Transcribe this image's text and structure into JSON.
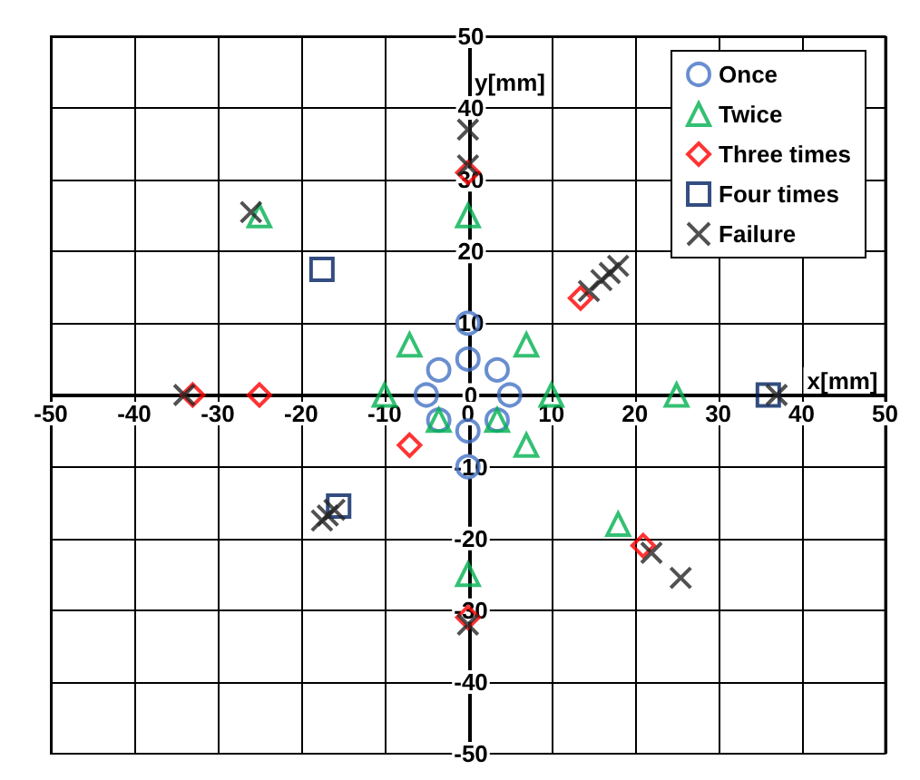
{
  "chart_data": {
    "type": "scatter",
    "xlabel": "x[mm]",
    "ylabel": "y[mm]",
    "xlim": [
      -50,
      50
    ],
    "ylim": [
      -50,
      50
    ],
    "xticks": [
      -50,
      -40,
      -30,
      -20,
      -10,
      0,
      10,
      20,
      30,
      40,
      50
    ],
    "yticks": [
      -50,
      -40,
      -30,
      -20,
      -10,
      0,
      10,
      20,
      30,
      40,
      50
    ],
    "grid": true,
    "legend": "top right",
    "series": [
      {
        "name": "Once",
        "color": "#4472c4",
        "marker": "circle",
        "x": [
          0,
          0,
          3.5,
          -3.5,
          5,
          -5,
          3.5,
          -3.5,
          0,
          0
        ],
        "values": [
          10,
          5,
          3.5,
          3.5,
          0,
          0,
          -3.5,
          -3.5,
          -5,
          -10
        ]
      },
      {
        "name": "Twice",
        "color": "#00b050",
        "marker": "triangle",
        "x": [
          -25,
          0,
          -7,
          7,
          -10,
          10,
          25,
          -3.5,
          3.5,
          7,
          18,
          0
        ],
        "values": [
          25,
          25,
          7,
          7,
          0,
          0,
          0,
          -3.5,
          -3.5,
          -7,
          -18,
          -25
        ]
      },
      {
        "name": "Three times",
        "color": "#ff0000",
        "marker": "diamond",
        "x": [
          0,
          13.5,
          -33,
          -25,
          -7,
          21,
          0
        ],
        "values": [
          31,
          13.5,
          0,
          0,
          -7,
          -21,
          -31
        ]
      },
      {
        "name": "Four times",
        "color": "#002060",
        "marker": "square",
        "x": [
          -17.5,
          -15.5,
          36
        ],
        "values": [
          17.5,
          -15.5,
          0
        ]
      },
      {
        "name": "Failure",
        "color": "#262626",
        "marker": "cross",
        "x": [
          0,
          0,
          -26,
          -34,
          14.5,
          16,
          17,
          18,
          -17.5,
          -16.8,
          -16,
          37,
          22,
          25.5,
          0
        ],
        "values": [
          37,
          32,
          25.5,
          0,
          14.5,
          16,
          17,
          18,
          -17.5,
          -16.8,
          -16,
          0,
          -22,
          -25.5,
          -32
        ]
      }
    ]
  }
}
